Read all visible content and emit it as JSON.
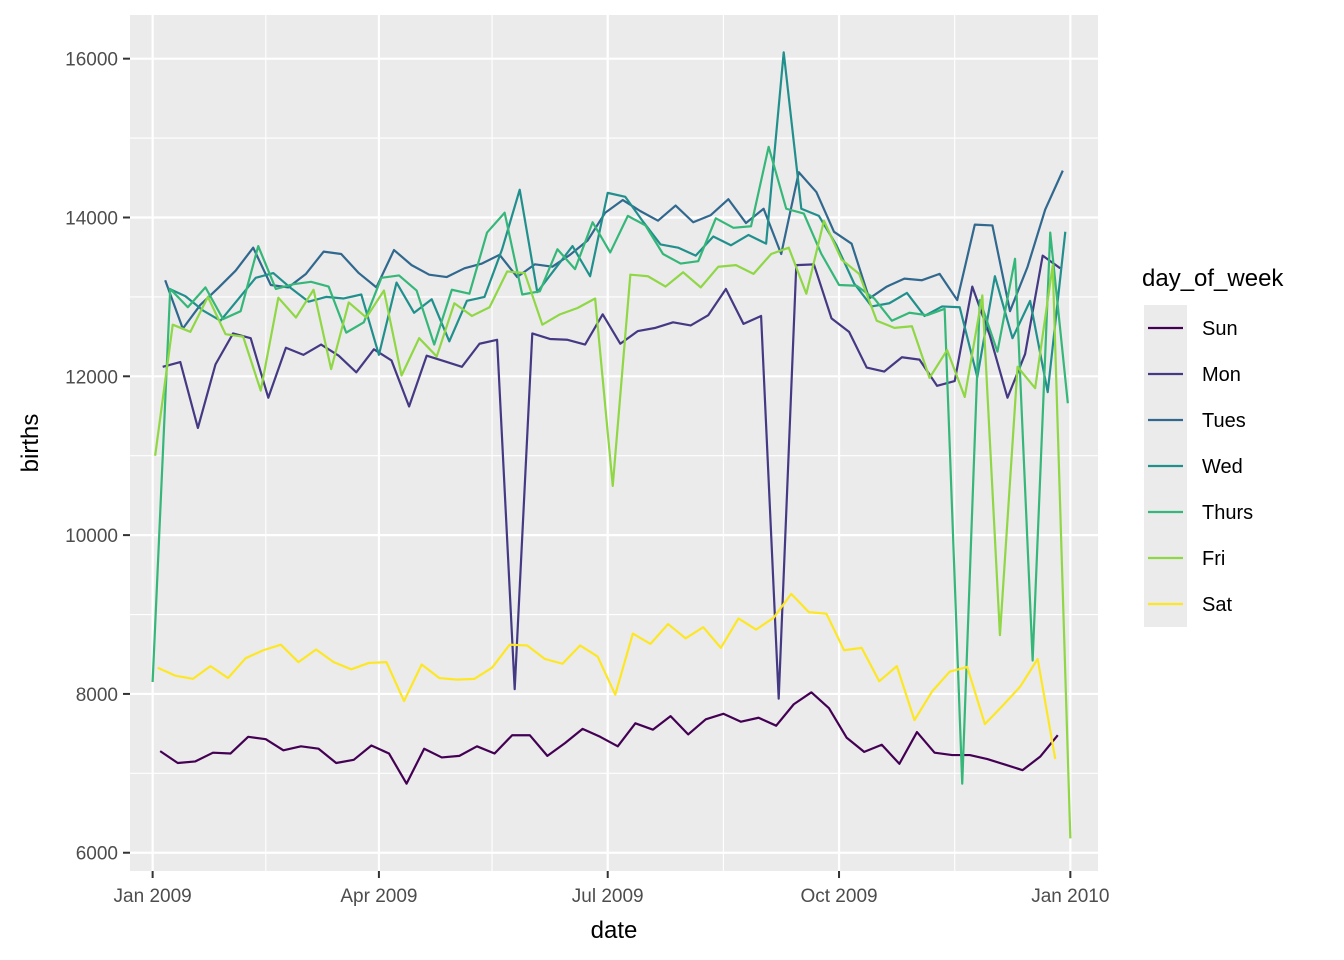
{
  "chart_data": {
    "type": "line",
    "title": "",
    "xlabel": "date",
    "ylabel": "births",
    "xlim": [
      "2008-12-23",
      "2010-01-12"
    ],
    "ylim": [
      5770,
      16550
    ],
    "x_ticks": [
      {
        "date": "2009-01-01",
        "label": "Jan 2009"
      },
      {
        "date": "2009-04-01",
        "label": "Apr 2009"
      },
      {
        "date": "2009-07-01",
        "label": "Jul 2009"
      },
      {
        "date": "2009-10-01",
        "label": "Oct 2009"
      },
      {
        "date": "2010-01-01",
        "label": "Jan 2010"
      }
    ],
    "x_minor_ticks": [
      "2009-02-15",
      "2009-05-16",
      "2009-08-16",
      "2009-11-16"
    ],
    "y_ticks": [
      6000,
      8000,
      10000,
      12000,
      14000,
      16000
    ],
    "y_minor_ticks": [
      7000,
      9000,
      11000,
      13000,
      15000
    ],
    "grid": true,
    "legend": {
      "title": "day_of_week",
      "position": "right"
    },
    "series": [
      {
        "name": "Sun",
        "color": "#440154",
        "start": "2009-01-04",
        "step_days": 7,
        "values": [
          7280,
          7130,
          7150,
          7260,
          7250,
          7460,
          7430,
          7290,
          7340,
          7310,
          7130,
          7170,
          7350,
          7250,
          6870,
          7310,
          7200,
          7220,
          7340,
          7250,
          7480,
          7480,
          7220,
          7380,
          7560,
          7460,
          7340,
          7630,
          7550,
          7720,
          7490,
          7680,
          7750,
          7650,
          7700,
          7600,
          7870,
          8020,
          7820,
          7450,
          7270,
          7360,
          7120,
          7520,
          7260,
          7230,
          7230,
          7180,
          7110,
          7040,
          7210,
          7480
        ]
      },
      {
        "name": "Mon",
        "color": "#443A83",
        "start": "2009-01-05",
        "step_days": 7,
        "values": [
          12120,
          12180,
          11350,
          12150,
          12540,
          12480,
          11730,
          12360,
          12270,
          12400,
          12260,
          12050,
          12340,
          12200,
          11620,
          12260,
          12190,
          12120,
          12410,
          12460,
          8060,
          12540,
          12470,
          12460,
          12400,
          12780,
          12410,
          12570,
          12610,
          12680,
          12640,
          12770,
          13100,
          12660,
          12760,
          7940,
          13400,
          13410,
          12730,
          12560,
          12110,
          12060,
          12240,
          12210,
          11880,
          11940,
          13130,
          12510,
          11730,
          12280,
          13520,
          13360
        ]
      },
      {
        "name": "Tues",
        "color": "#31688E",
        "start": "2009-01-06",
        "step_days": 7,
        "values": [
          13210,
          12600,
          12900,
          13110,
          13330,
          13620,
          13150,
          13120,
          13290,
          13570,
          13540,
          13300,
          13120,
          13590,
          13400,
          13280,
          13250,
          13360,
          13420,
          13530,
          13250,
          13410,
          13380,
          13530,
          13710,
          14060,
          14220,
          14080,
          13960,
          14150,
          13940,
          14030,
          14230,
          13930,
          14110,
          13540,
          14570,
          14320,
          13820,
          13670,
          12980,
          13130,
          13230,
          13210,
          13290,
          12960,
          13910,
          13900,
          12820,
          13380,
          14100,
          14590
        ]
      },
      {
        "name": "Wed",
        "color": "#21908C",
        "start": "2009-01-07",
        "step_days": 7,
        "values": [
          13110,
          13010,
          12830,
          12700,
          12970,
          13240,
          13300,
          13110,
          12940,
          13000,
          12980,
          13030,
          12270,
          13180,
          12800,
          12970,
          12440,
          12950,
          13000,
          13600,
          14350,
          13060,
          13350,
          13640,
          13260,
          14310,
          14260,
          13950,
          13660,
          13620,
          13520,
          13760,
          13650,
          13780,
          13670,
          16080,
          14110,
          14020,
          13650,
          13170,
          12880,
          12920,
          13050,
          12760,
          12880,
          12870,
          11990,
          13260,
          12480,
          12950,
          11800,
          13820
        ]
      },
      {
        "name": "Thurs",
        "color": "#35B779",
        "start": "2009-01-01",
        "step_days": 7,
        "values": [
          8150,
          13100,
          12870,
          13120,
          12720,
          12820,
          13640,
          13100,
          13160,
          13190,
          13130,
          12550,
          12680,
          13240,
          13270,
          13080,
          12400,
          13090,
          13040,
          13810,
          14060,
          13030,
          13070,
          13600,
          13350,
          13940,
          13560,
          14020,
          13900,
          13540,
          13420,
          13450,
          13990,
          13870,
          13890,
          14890,
          14110,
          14050,
          13540,
          13150,
          13140,
          12980,
          12700,
          12800,
          12770,
          12850,
          6870,
          12960,
          12310,
          13480,
          8420,
          13810,
          11660
        ]
      },
      {
        "name": "Fri",
        "color": "#8FD744",
        "start": "2009-01-02",
        "step_days": 7,
        "values": [
          11000,
          12650,
          12560,
          13000,
          12530,
          12500,
          11820,
          12990,
          12740,
          13090,
          12090,
          12930,
          12740,
          13080,
          12010,
          12480,
          12250,
          12920,
          12760,
          12870,
          13320,
          13300,
          12650,
          12780,
          12860,
          12980,
          10620,
          13280,
          13260,
          13130,
          13310,
          13120,
          13380,
          13400,
          13290,
          13540,
          13620,
          13040,
          13960,
          13470,
          13290,
          12700,
          12610,
          12630,
          11980,
          12330,
          11740,
          13020,
          8740,
          12120,
          11850,
          13400,
          6180
        ]
      },
      {
        "name": "Sat",
        "color": "#FDE725",
        "start": "2009-01-03",
        "step_days": 7,
        "values": [
          8330,
          8230,
          8190,
          8350,
          8200,
          8450,
          8550,
          8620,
          8400,
          8560,
          8400,
          8310,
          8390,
          8400,
          7910,
          8370,
          8200,
          8180,
          8190,
          8330,
          8620,
          8610,
          8440,
          8380,
          8610,
          8470,
          7990,
          8760,
          8630,
          8880,
          8700,
          8840,
          8580,
          8950,
          8810,
          8960,
          9260,
          9030,
          9010,
          8550,
          8580,
          8160,
          8350,
          7670,
          8030,
          8280,
          8340,
          7620,
          7850,
          8090,
          8440,
          7180
        ]
      }
    ]
  }
}
